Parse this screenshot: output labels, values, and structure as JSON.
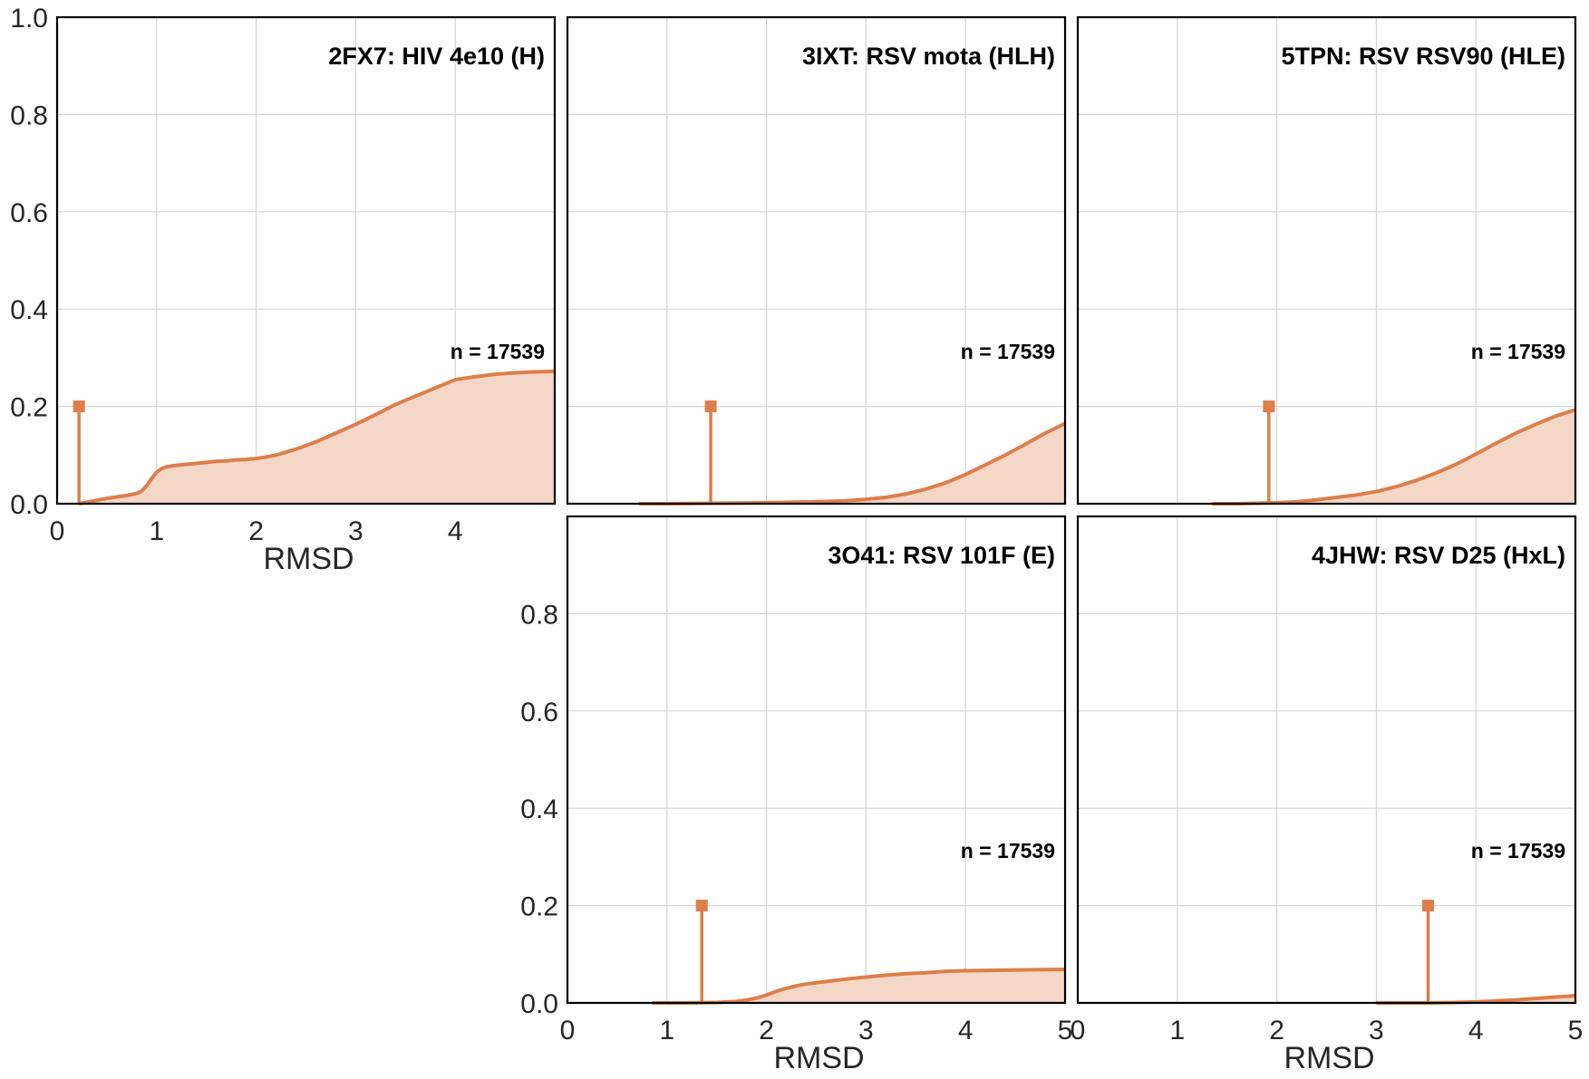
{
  "figure": {
    "line_color": "#dd7e4b",
    "fill_color": "#f5d7c8",
    "grid_color": "#d5d5d5"
  },
  "chart_data": [
    {
      "type": "area",
      "title": "2FX7: HIV 4e10 (H)",
      "annotation": "n = 17539",
      "xlabel": "RMSD",
      "ylabel": "",
      "xlim": [
        0,
        5
      ],
      "ylim": [
        0,
        1
      ],
      "xticks": [
        "0",
        "1",
        "2",
        "3",
        "4"
      ],
      "yticks": [
        "0.0",
        "0.2",
        "0.4",
        "0.6",
        "0.8",
        "1.0"
      ],
      "marker": {
        "x": 0.22,
        "y": 0.2
      },
      "series": [
        {
          "x": [
            0.22,
            0.3,
            0.4,
            0.5,
            0.6,
            0.7,
            0.8,
            0.85,
            0.9,
            0.95,
            1.0,
            1.05,
            1.1,
            1.2,
            1.3,
            1.4,
            1.5,
            1.6,
            1.7,
            1.8,
            1.9,
            2.0,
            2.1,
            2.2,
            2.3,
            2.4,
            2.6,
            2.8,
            3.0,
            3.2,
            3.4,
            3.6,
            3.8,
            4.0,
            4.1,
            4.2,
            4.4,
            4.6,
            4.8,
            5.0
          ],
          "y": [
            0.0,
            0.003,
            0.007,
            0.011,
            0.014,
            0.017,
            0.021,
            0.026,
            0.037,
            0.052,
            0.065,
            0.072,
            0.076,
            0.079,
            0.081,
            0.083,
            0.085,
            0.087,
            0.088,
            0.09,
            0.091,
            0.093,
            0.096,
            0.1,
            0.106,
            0.112,
            0.127,
            0.145,
            0.163,
            0.183,
            0.204,
            0.221,
            0.238,
            0.255,
            0.258,
            0.261,
            0.266,
            0.269,
            0.271,
            0.272
          ]
        }
      ]
    },
    {
      "type": "area",
      "title": "3IXT: RSV mota (HLH)",
      "annotation": "n = 17539",
      "xlabel": "",
      "ylabel": "",
      "xlim": [
        0,
        5
      ],
      "ylim": [
        0,
        1
      ],
      "xticks": [],
      "yticks": [],
      "marker": {
        "x": 1.44,
        "y": 0.2
      },
      "series": [
        {
          "x": [
            0.72,
            1.0,
            1.5,
            2.0,
            2.5,
            2.8,
            3.0,
            3.2,
            3.4,
            3.6,
            3.8,
            4.0,
            4.2,
            4.4,
            4.6,
            4.8,
            5.0
          ],
          "y": [
            0.0,
            0.0,
            0.001,
            0.002,
            0.004,
            0.006,
            0.009,
            0.013,
            0.02,
            0.03,
            0.043,
            0.06,
            0.08,
            0.1,
            0.122,
            0.145,
            0.165
          ]
        }
      ]
    },
    {
      "type": "area",
      "title": "5TPN: RSV RSV90 (HLE)",
      "annotation": "n = 17539",
      "xlabel": "",
      "ylabel": "",
      "xlim": [
        0,
        5
      ],
      "ylim": [
        0,
        1
      ],
      "xticks": [],
      "yticks": [],
      "marker": {
        "x": 1.92,
        "y": 0.2
      },
      "series": [
        {
          "x": [
            1.35,
            1.6,
            1.8,
            2.0,
            2.2,
            2.4,
            2.6,
            2.8,
            3.0,
            3.2,
            3.4,
            3.6,
            3.8,
            4.0,
            4.2,
            4.4,
            4.6,
            4.8,
            5.0
          ],
          "y": [
            0.0,
            0.0,
            0.001,
            0.002,
            0.004,
            0.008,
            0.013,
            0.018,
            0.025,
            0.035,
            0.048,
            0.063,
            0.081,
            0.102,
            0.124,
            0.145,
            0.163,
            0.18,
            0.193
          ]
        }
      ]
    },
    {
      "type": "area",
      "title": "3O41: RSV 101F (E)",
      "annotation": "n = 17539",
      "xlabel": "RMSD",
      "ylabel": "",
      "xlim": [
        0,
        5
      ],
      "ylim": [
        0,
        1
      ],
      "xticks": [
        "0",
        "1",
        "2",
        "3",
        "4",
        "5"
      ],
      "yticks": [
        "0.0",
        "0.2",
        "0.4",
        "0.6",
        "0.8"
      ],
      "marker": {
        "x": 1.35,
        "y": 0.2
      },
      "series": [
        {
          "x": [
            0.85,
            1.2,
            1.5,
            1.7,
            1.8,
            1.9,
            2.0,
            2.1,
            2.2,
            2.3,
            2.4,
            2.6,
            2.8,
            3.0,
            3.2,
            3.4,
            3.6,
            3.8,
            4.0,
            4.3,
            4.6,
            5.0
          ],
          "y": [
            0.0,
            0.0,
            0.001,
            0.003,
            0.006,
            0.01,
            0.016,
            0.024,
            0.03,
            0.035,
            0.039,
            0.044,
            0.049,
            0.053,
            0.057,
            0.06,
            0.062,
            0.065,
            0.066,
            0.067,
            0.068,
            0.069
          ]
        }
      ]
    },
    {
      "type": "area",
      "title": "4JHW: RSV D25 (HxL)",
      "annotation": "n = 17539",
      "xlabel": "RMSD",
      "ylabel": "",
      "xlim": [
        0,
        5
      ],
      "ylim": [
        0,
        1
      ],
      "xticks": [
        "0",
        "1",
        "2",
        "3",
        "4",
        "5"
      ],
      "yticks": [],
      "marker": {
        "x": 3.52,
        "y": 0.2
      },
      "series": [
        {
          "x": [
            3.0,
            3.5,
            3.8,
            4.0,
            4.2,
            4.4,
            4.6,
            4.8,
            5.0
          ],
          "y": [
            0.0,
            0.0,
            0.001,
            0.002,
            0.004,
            0.006,
            0.009,
            0.012,
            0.015
          ]
        }
      ]
    }
  ]
}
